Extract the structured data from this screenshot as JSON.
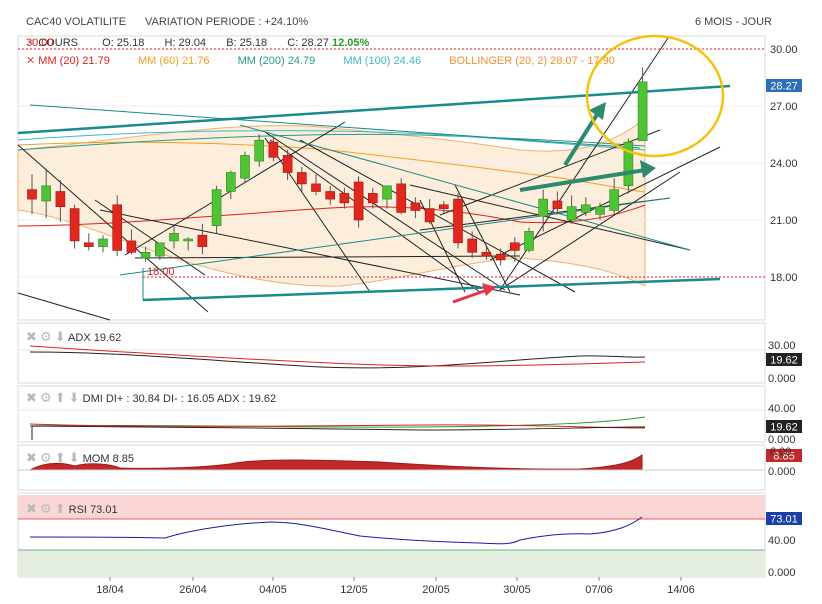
{
  "header": {
    "title": "CAC40 VOLATILITE",
    "variation_label": "VARIATION PERIODE : +24.10%",
    "period": "6 MOIS - JOUR"
  },
  "ohlc_row": {
    "label": "COURS",
    "open": "O: 25.18",
    "high": "H: 29.04",
    "low": "B: 25.18",
    "close": "C: 28.27",
    "change": "12.05%"
  },
  "indicators": [
    {
      "label": "MM (20)",
      "value": "21.79",
      "color": "#e0201b"
    },
    {
      "label": "MM (60)",
      "value": "21.76",
      "color": "#f0a020"
    },
    {
      "label": "MM (200)",
      "value": "24.79",
      "color": "#2a9a8a"
    },
    {
      "label": "MM (100)",
      "value": "24.46",
      "color": "#3cb8c8"
    },
    {
      "label": "BOLLINGER (20, 2)",
      "value": "28.07 - 17.90",
      "color": "#f09030"
    }
  ],
  "panels": {
    "adx": {
      "label": "ADX",
      "value": "19.62",
      "axis": [
        "30.00",
        "0.000"
      ],
      "last": "19.62"
    },
    "dmi": {
      "label": "DMI",
      "text": "DI+ : 30.84 DI- : 16.05 ADX : 19.62",
      "axis": [
        "40.00",
        "0.000"
      ],
      "last": "19.62"
    },
    "mom": {
      "label": "MOM",
      "value": "8.85",
      "axis": [
        "6.00",
        "0.000"
      ],
      "last": "8.85"
    },
    "rsi": {
      "label": "RSI",
      "value": "73.01",
      "axis": [
        "40.00",
        "0.000"
      ],
      "last": "73.01"
    }
  },
  "price_labels": {
    "level_30": "30.00",
    "level_18": "18.00"
  },
  "chart_data": {
    "type": "candlestick",
    "title": "CAC40 VOLATILITE",
    "ylim": [
      16.5,
      31
    ],
    "y_ticks": [
      18,
      21,
      24,
      27,
      30
    ],
    "last_price": "28.27",
    "x_ticks": [
      "18/04",
      "26/04",
      "04/05",
      "12/05",
      "20/05",
      "30/05",
      "07/06",
      "14/06"
    ],
    "candles": [
      {
        "o": 22.6,
        "h": 23.4,
        "l": 21.3,
        "c": 22.1
      },
      {
        "o": 22.0,
        "h": 23.7,
        "l": 21.1,
        "c": 22.8
      },
      {
        "o": 22.5,
        "h": 23.1,
        "l": 20.9,
        "c": 21.7
      },
      {
        "o": 21.6,
        "h": 21.8,
        "l": 19.5,
        "c": 19.9
      },
      {
        "o": 19.8,
        "h": 20.3,
        "l": 19.4,
        "c": 19.6
      },
      {
        "o": 19.6,
        "h": 20.2,
        "l": 19.3,
        "c": 20.0
      },
      {
        "o": 21.8,
        "h": 22.3,
        "l": 19.1,
        "c": 19.4
      },
      {
        "o": 19.9,
        "h": 20.5,
        "l": 19.2,
        "c": 19.3
      },
      {
        "o": 19.0,
        "h": 19.6,
        "l": 18.8,
        "c": 19.3
      },
      {
        "o": 19.1,
        "h": 19.8,
        "l": 18.9,
        "c": 19.8
      },
      {
        "o": 19.9,
        "h": 20.7,
        "l": 19.5,
        "c": 20.3
      },
      {
        "o": 19.9,
        "h": 20.1,
        "l": 19.4,
        "c": 20.0
      },
      {
        "o": 20.2,
        "h": 20.8,
        "l": 19.2,
        "c": 19.6
      },
      {
        "o": 20.7,
        "h": 22.8,
        "l": 20.3,
        "c": 22.6
      },
      {
        "o": 22.5,
        "h": 23.6,
        "l": 22.1,
        "c": 23.5
      },
      {
        "o": 23.2,
        "h": 24.6,
        "l": 23.0,
        "c": 24.4
      },
      {
        "o": 24.1,
        "h": 25.5,
        "l": 23.8,
        "c": 25.2
      },
      {
        "o": 25.1,
        "h": 25.3,
        "l": 24.1,
        "c": 24.3
      },
      {
        "o": 24.4,
        "h": 24.7,
        "l": 23.1,
        "c": 23.5
      },
      {
        "o": 23.5,
        "h": 23.8,
        "l": 22.5,
        "c": 22.9
      },
      {
        "o": 22.9,
        "h": 23.4,
        "l": 22.3,
        "c": 22.5
      },
      {
        "o": 22.5,
        "h": 22.8,
        "l": 21.8,
        "c": 22.1
      },
      {
        "o": 22.4,
        "h": 22.7,
        "l": 21.6,
        "c": 21.9
      },
      {
        "o": 23.0,
        "h": 23.3,
        "l": 20.6,
        "c": 21.0
      },
      {
        "o": 22.4,
        "h": 22.7,
        "l": 21.6,
        "c": 21.9
      },
      {
        "o": 22.1,
        "h": 22.8,
        "l": 21.6,
        "c": 22.8
      },
      {
        "o": 22.9,
        "h": 23.2,
        "l": 21.3,
        "c": 21.4
      },
      {
        "o": 21.9,
        "h": 22.2,
        "l": 21.1,
        "c": 21.5
      },
      {
        "o": 21.6,
        "h": 22.1,
        "l": 20.8,
        "c": 20.9
      },
      {
        "o": 21.8,
        "h": 22.0,
        "l": 21.3,
        "c": 21.6
      },
      {
        "o": 22.1,
        "h": 22.4,
        "l": 19.5,
        "c": 19.8
      },
      {
        "o": 20.0,
        "h": 20.4,
        "l": 19.0,
        "c": 19.3
      },
      {
        "o": 19.3,
        "h": 19.6,
        "l": 18.9,
        "c": 19.1
      },
      {
        "o": 19.2,
        "h": 19.5,
        "l": 18.6,
        "c": 18.9
      },
      {
        "o": 19.8,
        "h": 20.1,
        "l": 18.8,
        "c": 19.4
      },
      {
        "o": 19.4,
        "h": 20.6,
        "l": 19.3,
        "c": 20.4
      },
      {
        "o": 21.2,
        "h": 22.6,
        "l": 20.4,
        "c": 22.1
      },
      {
        "o": 22.0,
        "h": 22.5,
        "l": 21.3,
        "c": 21.6
      },
      {
        "o": 21.0,
        "h": 22.3,
        "l": 20.8,
        "c": 21.7
      },
      {
        "o": 21.4,
        "h": 22.2,
        "l": 21.2,
        "c": 21.8
      },
      {
        "o": 21.3,
        "h": 21.9,
        "l": 21.0,
        "c": 21.7
      },
      {
        "o": 21.5,
        "h": 23.2,
        "l": 21.3,
        "c": 22.6
      },
      {
        "o": 22.8,
        "h": 25.3,
        "l": 22.4,
        "c": 25.1
      },
      {
        "o": 25.18,
        "h": 29.04,
        "l": 25.18,
        "c": 28.27
      }
    ]
  }
}
